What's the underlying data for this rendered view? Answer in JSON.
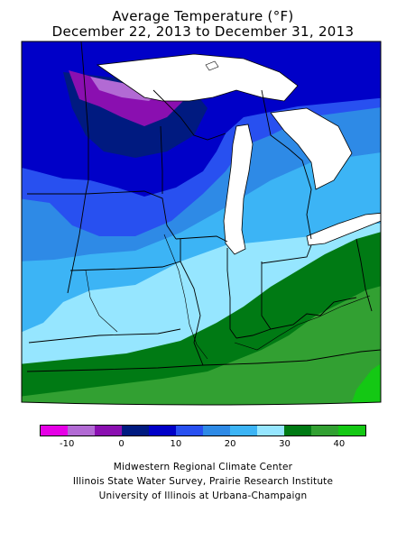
{
  "title": {
    "line1": "Average Temperature (°F)",
    "line2": "December 22, 2013 to December 31, 2013"
  },
  "legend": {
    "colors": [
      "#e600e6",
      "#b26ad4",
      "#8a0fb0",
      "#001a80",
      "#0000c8",
      "#2850f0",
      "#2e8ae6",
      "#3cb4f5",
      "#96e6ff",
      "#007a14",
      "#32a032",
      "#14c814"
    ],
    "tick_labels": [
      "-10",
      "0",
      "10",
      "20",
      "30",
      "40"
    ]
  },
  "credits": {
    "line1": "Midwestern Regional Climate Center",
    "line2": "Illinois State Water Survey, Prairie Research Institute",
    "line3": "University of Illinois at Urbana-Champaign"
  }
}
